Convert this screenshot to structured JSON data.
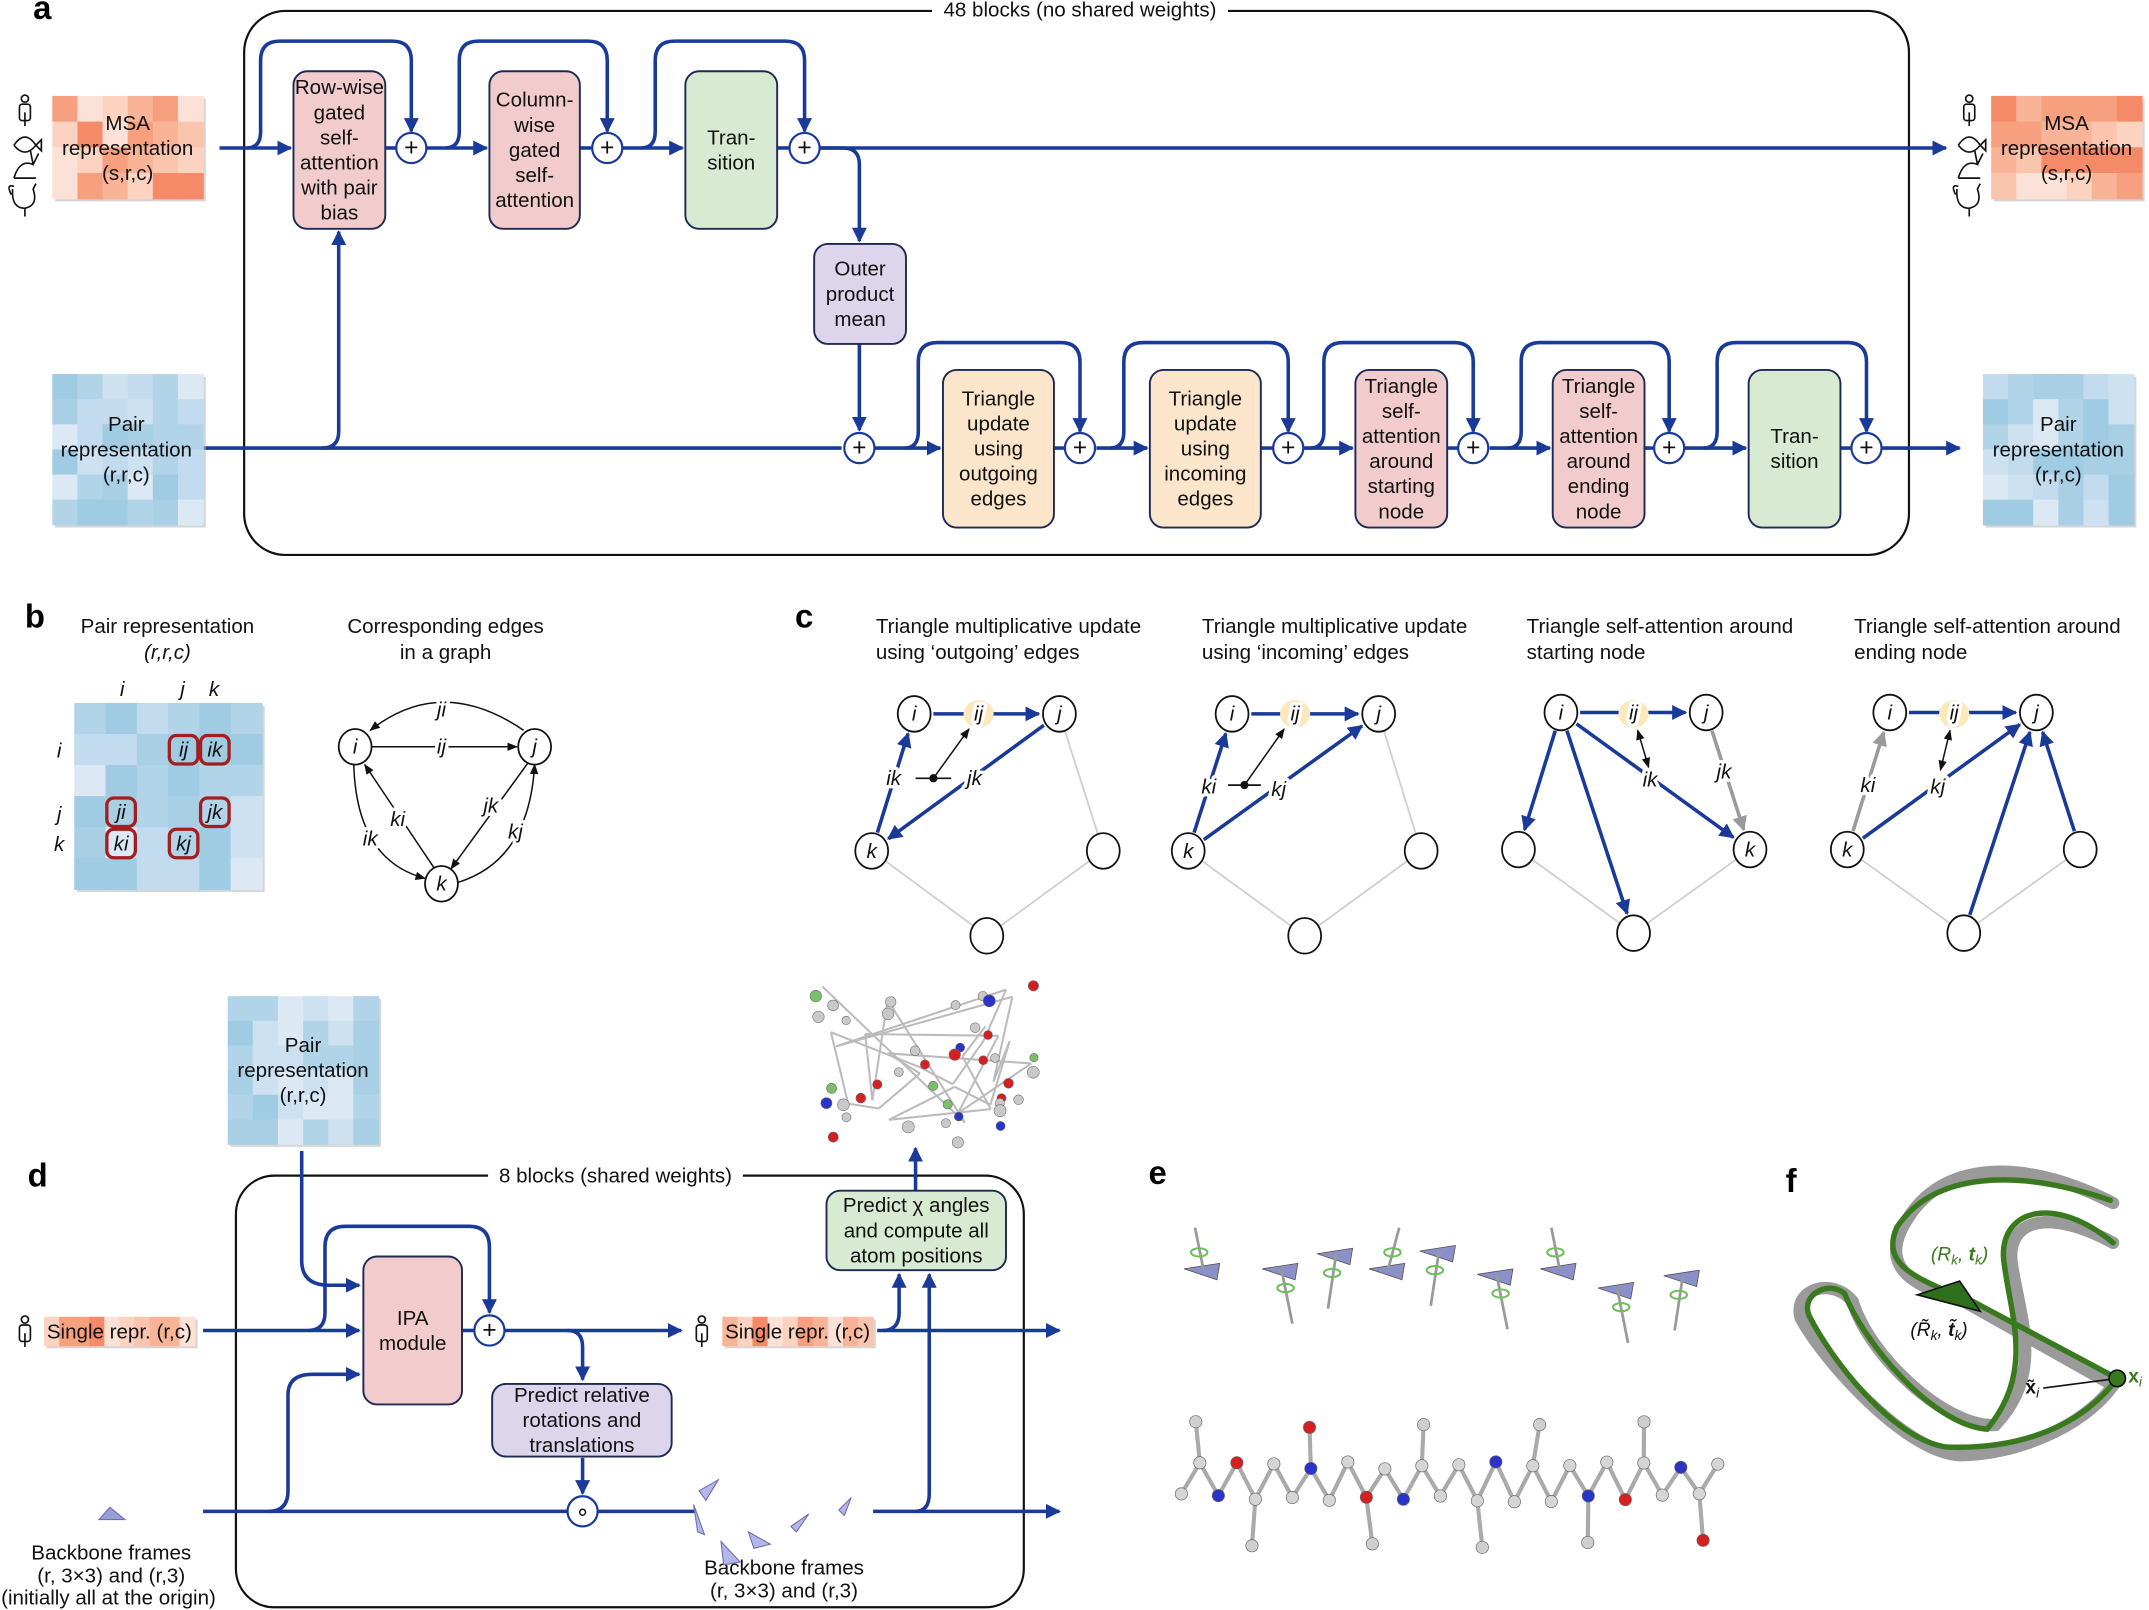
{
  "panel_labels": {
    "a": "a",
    "b": "b",
    "c": "c",
    "d": "d",
    "e": "e",
    "f": "f"
  },
  "colors": {
    "flow_blue": "#1a3a9a",
    "attention_pink": "#f2cccc",
    "transition_green": "#d9ead3",
    "outer_product_purple": "#dcd5ec",
    "triangle_update_orange": "#fbe5cb",
    "highlight_red": "#a31f1f",
    "edge_yellow": "#fbe8bb",
    "structure_green": "#3a7a1f",
    "msa_palette": [
      "#fbd3c0",
      "#f9b498",
      "#f7a07f",
      "#fce2d6",
      "#fac4ad",
      "#f48a67"
    ],
    "pair_palette": [
      "#9fcbe3",
      "#c2dbee",
      "#b2d4e9",
      "#dce9f5",
      "#a9cfe5",
      "#cde1f1"
    ]
  },
  "icons": {
    "species": [
      "human-icon",
      "fish-icon",
      "rabbit-icon",
      "chicken-icon"
    ],
    "single_repr": "human-icon"
  },
  "a": {
    "block_title": "48 blocks (no shared weights)",
    "msa_in": [
      "MSA",
      "representation",
      "(s,r,c)"
    ],
    "msa_out": [
      "MSA",
      "representation",
      "(s,r,c)"
    ],
    "pair_in": [
      "Pair",
      "representation",
      "(r,r,c)"
    ],
    "pair_out": [
      "Pair",
      "representation",
      "(r,r,c)"
    ],
    "plus": "+",
    "boxes": {
      "row_attn": [
        "Row-wise",
        "gated",
        "self-",
        "attention",
        "with pair",
        "bias"
      ],
      "col_attn": [
        "Column-",
        "wise",
        "gated",
        "self-",
        "attention"
      ],
      "msa_transition": [
        "Tran-",
        "sition"
      ],
      "outer_product": [
        "Outer",
        "product",
        "mean"
      ],
      "tri_out": [
        "Triangle",
        "update",
        "using",
        "outgoing",
        "edges"
      ],
      "tri_in": [
        "Triangle",
        "update",
        "using",
        "incoming",
        "edges"
      ],
      "tri_start": [
        "Triangle",
        "self-",
        "attention",
        "around",
        "starting",
        "node"
      ],
      "tri_end": [
        "Triangle",
        "self-",
        "attention",
        "around",
        "ending",
        "node"
      ],
      "pair_transition": [
        "Tran-",
        "sition"
      ]
    }
  },
  "b": {
    "matrix_title": [
      "Pair representation",
      "(r,r,c)"
    ],
    "graph_title": [
      "Corresponding edges",
      "in a graph"
    ],
    "axis_labels": {
      "i": "i",
      "j": "j",
      "k": "k"
    },
    "cells": [
      "ij",
      "ik",
      "ji",
      "jk",
      "ki",
      "kj"
    ],
    "edges": {
      "ji": "ji",
      "ij": "ij",
      "ki": "ki",
      "ik": "ik",
      "jk": "jk",
      "kj": "kj"
    }
  },
  "c": {
    "subpanels": [
      {
        "title": [
          "Triangle multiplicative update",
          "using ‘outgoing’ edges"
        ],
        "nodes": [
          "i",
          "j",
          "k"
        ],
        "edge_labels": [
          "ij",
          "ik",
          "jk"
        ]
      },
      {
        "title": [
          "Triangle multiplicative update",
          "using ‘incoming’ edges"
        ],
        "nodes": [
          "i",
          "j",
          "k"
        ],
        "edge_labels": [
          "ij",
          "ki",
          "kj"
        ]
      },
      {
        "title": [
          "Triangle self-attention around",
          "starting node"
        ],
        "nodes": [
          "i",
          "j",
          "k"
        ],
        "edge_labels": [
          "ij",
          "ik",
          "jk"
        ]
      },
      {
        "title": [
          "Triangle self-attention around",
          "ending node"
        ],
        "nodes": [
          "i",
          "j",
          "k"
        ],
        "edge_labels": [
          "ij",
          "ki",
          "kj"
        ]
      }
    ]
  },
  "d": {
    "block_title": "8 blocks (shared weights)",
    "pair_in": [
      "Pair",
      "representation",
      "(r,r,c)"
    ],
    "single_in": "Single repr. (r,c)",
    "single_out": "Single repr. (r,c)",
    "plus": "+",
    "compose": "∘",
    "ipa": [
      "IPA",
      "module"
    ],
    "predict_frames": [
      "Predict relative",
      "rotations and",
      "translations"
    ],
    "predict_chi": [
      "Predict χ angles",
      "and compute all",
      "atom positions"
    ],
    "frames_in": [
      "Backbone frames",
      "(r, 3×3) and (r,3)",
      "(initially all at the origin)"
    ],
    "frames_out": [
      "Backbone frames",
      "(r, 3×3) and (r,3)"
    ]
  },
  "f": {
    "pred_frame": [
      "(",
      "R",
      "k",
      ", ",
      "t",
      "k",
      ")"
    ],
    "true_frame": [
      "(",
      "R̃",
      "k",
      ", ",
      "t̃",
      "k",
      ")"
    ],
    "true_atom": [
      "x̃",
      "i"
    ],
    "pred_atom": [
      "x",
      "i"
    ]
  }
}
